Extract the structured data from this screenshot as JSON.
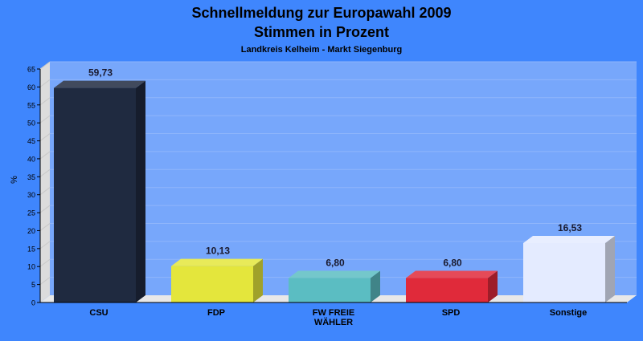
{
  "chart_data": {
    "type": "bar",
    "title": "Schnellmeldung zur Europawahl 2009",
    "title_line2": "Stimmen in Prozent",
    "subtitle": "Landkreis Kelheim - Markt Siegenburg",
    "ylabel": "%",
    "xlabel": "",
    "ylim": [
      0,
      65
    ],
    "yticks": [
      "0",
      "5",
      "10",
      "15",
      "20",
      "25",
      "30",
      "35",
      "40",
      "45",
      "50",
      "55",
      "60",
      "65"
    ],
    "grid": true,
    "categories": [
      [
        "CSU"
      ],
      [
        "FDP"
      ],
      [
        "FW FREIE",
        "WÄHLER"
      ],
      [
        "SPD"
      ],
      [
        "Sonstige"
      ]
    ],
    "values": [
      59.73,
      10.13,
      6.8,
      6.8,
      16.53
    ],
    "value_labels": [
      "59,73",
      "10,13",
      "6,80",
      "6,80",
      "16,53"
    ],
    "colors": [
      "#1f2a40",
      "#e4e63c",
      "#5bbdc2",
      "#e02a3a",
      "#e4ebff"
    ],
    "background": "#3f86fd",
    "plot_background": "#77a7fb"
  }
}
